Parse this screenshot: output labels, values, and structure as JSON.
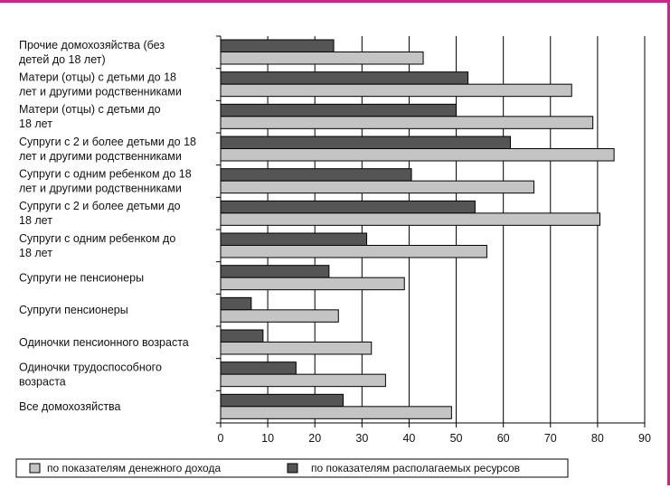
{
  "chart_data": {
    "type": "bar",
    "orientation": "horizontal",
    "categories": [
      [
        "Прочие домохозяйства (без",
        "детей до 18 лет)"
      ],
      [
        "Матери (отцы) с детьми до 18",
        "лет и другими родственниками"
      ],
      [
        "Матери (отцы) с детьми до",
        "18 лет"
      ],
      [
        "Супруги с 2 и более детьми до 18",
        "лет и другими родственниками"
      ],
      [
        "Супруги с одним ребенком до 18",
        "лет и другими родственниками"
      ],
      [
        "Супруги с 2 и более детьми до",
        "18 лет"
      ],
      [
        "Супруги с одним ребенком до",
        "18 лет"
      ],
      [
        "Супруги не пенсионеры"
      ],
      [
        "Супруги пенсионеры"
      ],
      [
        "Одиночки пенсионного возраста"
      ],
      [
        "Одиночки трудоспособного",
        "возраста"
      ],
      [
        "Все домохозяйства"
      ]
    ],
    "series": [
      {
        "name": "по показателям располагаемых ресурсов",
        "color": "#555555",
        "values": [
          24,
          52.5,
          50,
          61.5,
          40.5,
          54,
          31,
          23,
          6.5,
          9,
          16,
          26
        ]
      },
      {
        "name": "по показателям денежного дохода",
        "color": "#c4c4c4",
        "values": [
          43,
          74.5,
          79,
          83.5,
          66.5,
          80.5,
          56.5,
          39,
          25,
          32,
          35,
          49
        ]
      }
    ],
    "xlim": [
      0,
      90
    ],
    "xticks": [
      "0",
      "10",
      "20",
      "30",
      "40",
      "50",
      "60",
      "70",
      "80",
      "90"
    ],
    "grid": "vertical",
    "legend": {
      "placement": "bottom",
      "order": [
        "по показателям денежного дохода",
        "по показателям располагаемых ресурсов"
      ]
    }
  }
}
